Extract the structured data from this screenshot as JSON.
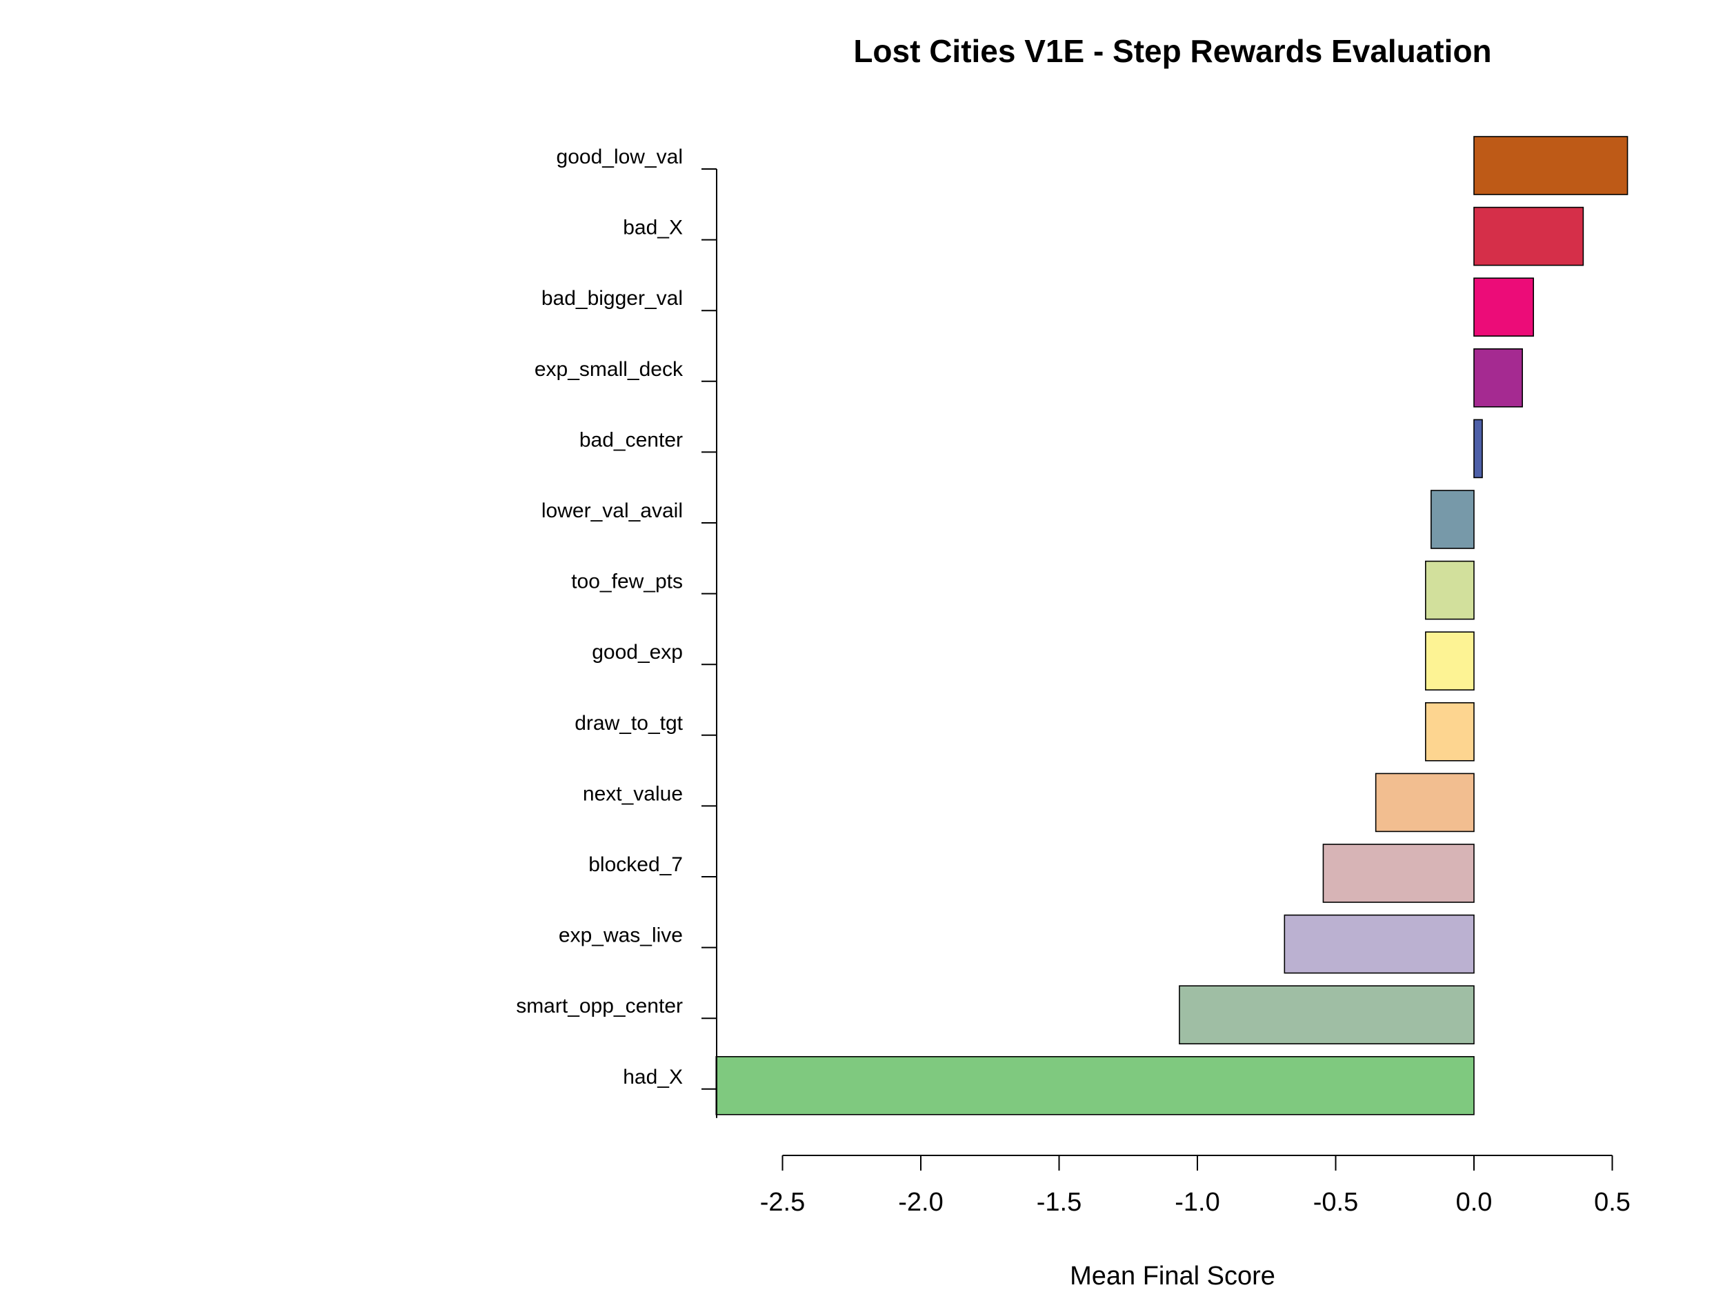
{
  "chart_data": {
    "type": "bar",
    "orientation": "horizontal",
    "title": "Lost Cities V1E - Step Rewards Evaluation",
    "xlabel": "Mean Final Score",
    "ylabel": "",
    "xlim": [
      -2.75,
      0.55
    ],
    "x_ticks": [
      -2.5,
      -2.0,
      -1.5,
      -1.0,
      -0.5,
      0.0,
      0.5
    ],
    "x_tick_labels": [
      "-2.5",
      "-2.0",
      "-1.5",
      "-1.0",
      "-0.5",
      "0.0",
      "0.5"
    ],
    "grid": false,
    "categories": [
      "good_low_val",
      "bad_X",
      "bad_bigger_val",
      "exp_small_deck",
      "bad_center",
      "lower_val_avail",
      "too_few_pts",
      "good_exp",
      "draw_to_tgt",
      "next_value",
      "blocked_7",
      "exp_was_live",
      "smart_opp_center",
      "had_X"
    ],
    "values": [
      0.555,
      0.395,
      0.215,
      0.175,
      0.03,
      -0.155,
      -0.175,
      -0.175,
      -0.175,
      -0.355,
      -0.545,
      -0.685,
      -1.065,
      -2.74
    ],
    "colors": [
      "#BE5A17",
      "#D52F49",
      "#EC0C78",
      "#A52A91",
      "#4E60A8",
      "#7799A9",
      "#D2E09C",
      "#FDF394",
      "#FDD590",
      "#F2BE90",
      "#D7B4B6",
      "#BBB1D1",
      "#9FBEA4",
      "#7FC97F"
    ]
  }
}
